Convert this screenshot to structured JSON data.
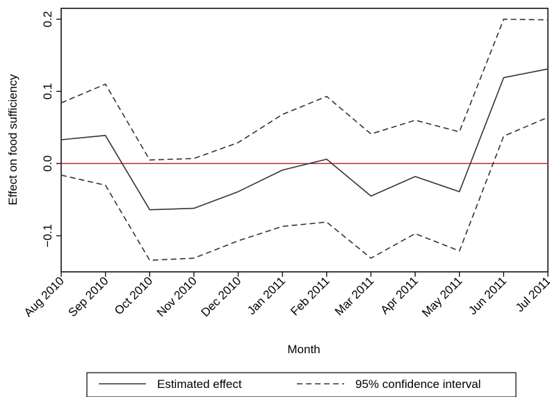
{
  "chart_data": {
    "type": "line",
    "title": "",
    "xlabel": "Month",
    "ylabel": "Effect on food sufficiency",
    "categories": [
      "Aug 2010",
      "Sep 2010",
      "Oct 2010",
      "Nov 2010",
      "Dec 2010",
      "Jan 2011",
      "Feb 2011",
      "Mar 2011",
      "Apr 2011",
      "May 2011",
      "Jun 2011",
      "Jul 2011"
    ],
    "yticks": [
      "−0.1",
      "0.0",
      "0.1",
      "0.2"
    ],
    "ylim": [
      -0.15,
      0.215
    ],
    "reference_line": {
      "y": 0,
      "color": "#c0293b"
    },
    "series": [
      {
        "name": "Estimated effect",
        "style": "solid",
        "color": "#333333",
        "values": [
          0.033,
          0.039,
          -0.064,
          -0.062,
          -0.039,
          -0.009,
          0.006,
          -0.045,
          -0.018,
          -0.039,
          0.119,
          0.131
        ]
      },
      {
        "name": "95% confidence interval",
        "style": "dashed",
        "color": "#333333",
        "values": [
          0.084,
          0.11,
          0.005,
          0.007,
          0.029,
          0.068,
          0.093,
          0.041,
          0.06,
          0.044,
          0.2,
          0.199
        ]
      },
      {
        "name": "",
        "style": "dashed",
        "color": "#333333",
        "values": [
          -0.016,
          -0.03,
          -0.134,
          -0.131,
          -0.107,
          -0.087,
          -0.081,
          -0.131,
          -0.097,
          -0.121,
          0.038,
          0.064
        ]
      }
    ],
    "legend": {
      "position": "bottom",
      "entries": [
        {
          "label": "Estimated effect",
          "style": "solid"
        },
        {
          "label": "95% confidence interval",
          "style": "dashed"
        }
      ]
    },
    "grid": false
  }
}
